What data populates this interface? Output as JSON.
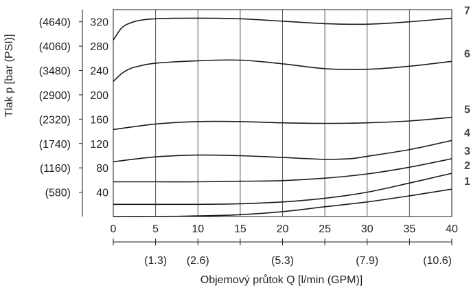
{
  "chart_data": {
    "type": "line",
    "title": "",
    "ylabel": "Tlak p [bar (PSI)]",
    "xlabel": "Objemový průtok Q [l/min (GPM)]",
    "xlim": [
      0,
      40
    ],
    "ylim": [
      0,
      340
    ],
    "grid": "vertical",
    "legend": "right",
    "x_ticks": [
      0,
      5,
      10,
      15,
      20,
      25,
      30,
      35,
      40
    ],
    "x_tick_labels": [
      "0",
      "5",
      "10",
      "15",
      "20",
      "25",
      "30",
      "35",
      "40"
    ],
    "gpm_ticks": [
      {
        "x": 5,
        "label": "(1.3)"
      },
      {
        "x": 10,
        "label": "(2.6)"
      },
      {
        "x": 20,
        "label": "(5.3)"
      },
      {
        "x": 30,
        "label": "(7.9)"
      },
      {
        "x": 40,
        "label": "(10.6)"
      }
    ],
    "gpm_minor_ticks": [
      0,
      15,
      25,
      35
    ],
    "y_ticks": [
      {
        "bar": 320,
        "label": "320",
        "psi_label": "(4640)"
      },
      {
        "bar": 280,
        "label": "280",
        "psi_label": "(4060)"
      },
      {
        "bar": 240,
        "label": "240",
        "psi_label": "(3480)"
      },
      {
        "bar": 200,
        "label": "200",
        "psi_label": "(2900)"
      },
      {
        "bar": 160,
        "label": "160",
        "psi_label": "(2320)"
      },
      {
        "bar": 120,
        "label": "120",
        "psi_label": "(1740)"
      },
      {
        "bar": 80,
        "label": "80",
        "psi_label": "(1160)"
      },
      {
        "bar": 40,
        "label": "40",
        "psi_label": "(580)"
      }
    ],
    "series": [
      {
        "name": "7",
        "color": "#1a1a1a",
        "x": [
          0,
          1,
          2,
          3,
          5,
          10,
          15,
          20,
          25,
          30,
          35,
          40
        ],
        "y": [
          290,
          310,
          318,
          322,
          325,
          326,
          325,
          321,
          317,
          316,
          320,
          326
        ]
      },
      {
        "name": "6",
        "color": "#1a1a1a",
        "x": [
          0,
          1,
          2,
          3,
          5,
          10,
          15,
          20,
          25,
          30,
          35,
          40
        ],
        "y": [
          222,
          235,
          243,
          247,
          252,
          256,
          257,
          251,
          243,
          242,
          247,
          255
        ]
      },
      {
        "name": "5",
        "color": "#1a1a1a",
        "x": [
          0,
          5,
          10,
          15,
          20,
          25,
          30,
          35,
          40
        ],
        "y": [
          143,
          152,
          156,
          156,
          154,
          153,
          154,
          157,
          163
        ]
      },
      {
        "name": "4",
        "color": "#1a1a1a",
        "x": [
          0,
          5,
          10,
          15,
          20,
          25,
          28,
          30,
          35,
          40
        ],
        "y": [
          90,
          98,
          101,
          100,
          97,
          94,
          95,
          99,
          110,
          125
        ]
      },
      {
        "name": "3",
        "color": "#1a1a1a",
        "x": [
          0,
          5,
          10,
          15,
          20,
          25,
          30,
          35,
          40
        ],
        "y": [
          57,
          57,
          57,
          58,
          59,
          63,
          70,
          81,
          95
        ]
      },
      {
        "name": "2",
        "color": "#1a1a1a",
        "x": [
          0,
          5,
          10,
          15,
          20,
          25,
          30,
          35,
          40
        ],
        "y": [
          20,
          20,
          20,
          21,
          24,
          30,
          40,
          55,
          71
        ]
      },
      {
        "name": "1",
        "color": "#1a1a1a",
        "x": [
          0,
          5,
          10,
          15,
          20,
          25,
          30,
          35,
          40
        ],
        "y": [
          0,
          0,
          1,
          3,
          8,
          16,
          24,
          34,
          45
        ]
      }
    ]
  }
}
